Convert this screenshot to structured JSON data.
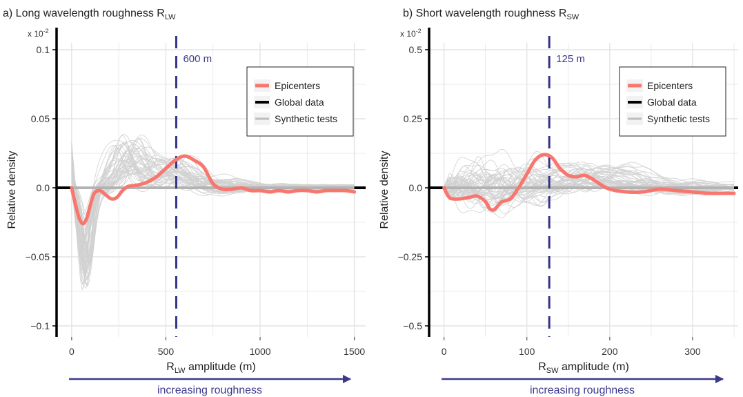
{
  "colors": {
    "epicenters": "#f8766d",
    "global": "#000000",
    "synthetic": "#bdbdbd",
    "synthetic_lines": "#d0d0d0",
    "grid": "#e4e4e4",
    "axis": "#000000",
    "threshold": "#333388",
    "arrow": "#3a3a8c",
    "annotation_text": "#3a3a8c"
  },
  "chart_data": [
    {
      "type": "line",
      "panel": "a",
      "title": "a) Long wavelength roughness R",
      "title_sub": "LW",
      "xlabel": "R",
      "xlabel_sub": "LW",
      "xlabel_suffix": " amplitude (m)",
      "ylabel": "Relative density",
      "scale_note": "x 10",
      "scale_exp": "-2",
      "xlim": [
        -80,
        1560
      ],
      "ylim": [
        -0.108,
        0.105
      ],
      "xticks": [
        0,
        500,
        1000,
        1500
      ],
      "xtick_labels": [
        "0",
        "500",
        "1000",
        "1500"
      ],
      "yticks": [
        -0.1,
        -0.05,
        0,
        0.05,
        0.1
      ],
      "ytick_labels": [
        "−0.1",
        "−0.05",
        "0.0",
        "0.05",
        "0.1"
      ],
      "grid": true,
      "threshold": {
        "x": 555,
        "label": "600 m"
      },
      "legend": {
        "position": "top-right",
        "entries": [
          "Epicenters",
          "Global data",
          "Synthetic tests"
        ]
      },
      "arrow_label": "increasing roughness",
      "series": [
        {
          "name": "Epicenters",
          "x": [
            0,
            20,
            40,
            60,
            80,
            100,
            120,
            150,
            180,
            210,
            240,
            270,
            300,
            350,
            400,
            450,
            500,
            550,
            600,
            650,
            700,
            750,
            800,
            850,
            900,
            950,
            1000,
            1050,
            1100,
            1150,
            1200,
            1250,
            1300,
            1350,
            1400,
            1450,
            1500
          ],
          "y": [
            0.0,
            -0.012,
            -0.022,
            -0.026,
            -0.022,
            -0.012,
            -0.004,
            -0.002,
            -0.005,
            -0.008,
            -0.007,
            -0.002,
            0.001,
            0.002,
            0.004,
            0.008,
            0.014,
            0.02,
            0.023,
            0.02,
            0.015,
            0.003,
            -0.001,
            -0.001,
            0.0,
            -0.002,
            -0.002,
            -0.003,
            -0.002,
            -0.003,
            -0.002,
            -0.002,
            -0.003,
            -0.002,
            -0.002,
            -0.002,
            -0.003
          ]
        },
        {
          "name": "Global data",
          "x": [
            0,
            1500
          ],
          "y": [
            0,
            0
          ]
        }
      ],
      "synthetic_runs": 50
    },
    {
      "type": "line",
      "panel": "b",
      "title": "b) Short wavelength roughness R",
      "title_sub": "SW",
      "xlabel": "R",
      "xlabel_sub": "SW",
      "xlabel_suffix": " amplitude (m)",
      "ylabel": "Relative density",
      "scale_note": "x 10",
      "scale_exp": "-2",
      "xlim": [
        -18,
        355
      ],
      "ylim": [
        -0.54,
        0.525
      ],
      "xticks": [
        0,
        100,
        200,
        300
      ],
      "xtick_labels": [
        "0",
        "100",
        "200",
        "300"
      ],
      "yticks": [
        -0.5,
        -0.25,
        0,
        0.25,
        0.5
      ],
      "ytick_labels": [
        "−0.5",
        "−0.25",
        "0.0",
        "0.25",
        "0.5"
      ],
      "grid": true,
      "threshold": {
        "x": 127,
        "label": "125 m"
      },
      "legend": {
        "position": "top-right",
        "entries": [
          "Epicenters",
          "Global data",
          "Synthetic tests"
        ]
      },
      "arrow_label": "increasing roughness",
      "series": [
        {
          "name": "Epicenters",
          "x": [
            0,
            5,
            10,
            20,
            30,
            40,
            50,
            55,
            60,
            65,
            70,
            80,
            90,
            100,
            110,
            120,
            130,
            140,
            150,
            160,
            170,
            180,
            190,
            200,
            220,
            240,
            260,
            280,
            300,
            320,
            340,
            350
          ],
          "y": [
            0.0,
            -0.03,
            -0.04,
            -0.04,
            -0.035,
            -0.03,
            -0.05,
            -0.075,
            -0.08,
            -0.065,
            -0.05,
            -0.04,
            0.0,
            0.05,
            0.1,
            0.12,
            0.11,
            0.07,
            0.045,
            0.04,
            0.045,
            0.03,
            0.01,
            -0.005,
            -0.015,
            -0.015,
            -0.005,
            -0.01,
            -0.015,
            -0.02,
            -0.02,
            -0.02
          ]
        },
        {
          "name": "Global data",
          "x": [
            0,
            350
          ],
          "y": [
            0,
            0
          ]
        }
      ],
      "synthetic_runs": 50
    }
  ]
}
